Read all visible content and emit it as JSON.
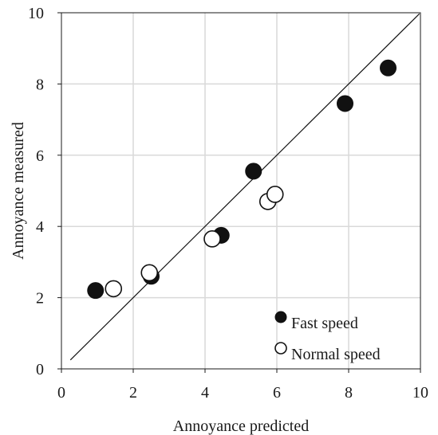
{
  "chart_data": {
    "type": "scatter",
    "title": "",
    "xlabel": "Annoyance predicted",
    "ylabel": "Annoyance measured",
    "xlim": [
      0,
      10
    ],
    "ylim": [
      0,
      10
    ],
    "xticks": [
      0,
      2,
      4,
      6,
      8,
      10
    ],
    "yticks": [
      0,
      2,
      4,
      6,
      8,
      10
    ],
    "grid": true,
    "legend_position": "bottom-right",
    "reference_line": {
      "type": "identity"
    },
    "series": [
      {
        "name": "Fast speed",
        "marker": "filled-circle",
        "color": "#111111",
        "points": [
          {
            "x": 0.95,
            "y": 2.2
          },
          {
            "x": 2.5,
            "y": 2.6
          },
          {
            "x": 4.45,
            "y": 3.75
          },
          {
            "x": 5.35,
            "y": 5.55
          },
          {
            "x": 7.9,
            "y": 7.45
          },
          {
            "x": 9.1,
            "y": 8.45
          }
        ]
      },
      {
        "name": "Normal speed",
        "marker": "open-circle",
        "color": "#111111",
        "points": [
          {
            "x": 1.45,
            "y": 2.25
          },
          {
            "x": 2.45,
            "y": 2.7
          },
          {
            "x": 4.2,
            "y": 3.65
          },
          {
            "x": 5.75,
            "y": 4.7
          },
          {
            "x": 5.95,
            "y": 4.9
          }
        ]
      }
    ]
  }
}
